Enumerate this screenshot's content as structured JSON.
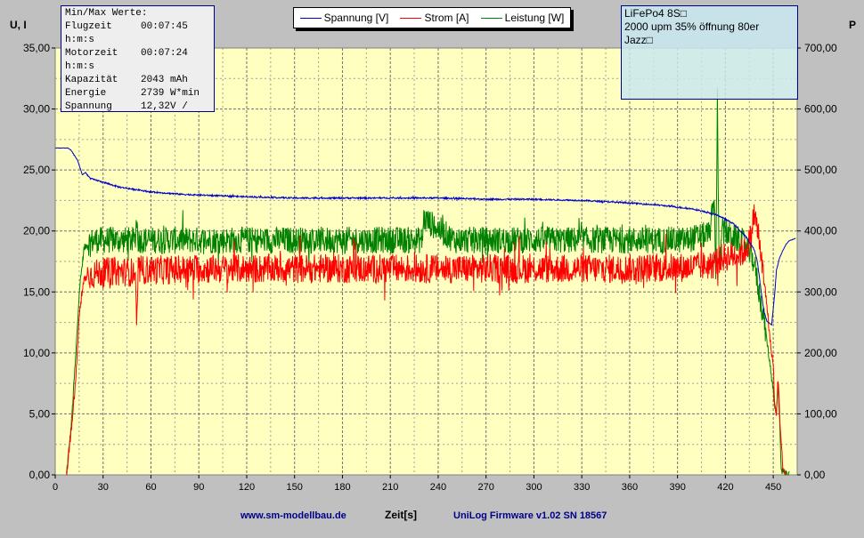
{
  "chart_data": {
    "type": "line",
    "xlabel": "Zeit[s]",
    "ylabel_left": "U, I",
    "ylabel_right": "P",
    "xlim": [
      0,
      465
    ],
    "ylim_left": [
      0,
      35
    ],
    "ylim_right": [
      0,
      700
    ],
    "x_ticks": [
      0,
      30,
      60,
      90,
      120,
      150,
      180,
      210,
      240,
      270,
      300,
      330,
      360,
      390,
      420,
      450
    ],
    "y_ticks_left": [
      "0,00",
      "5,00",
      "10,00",
      "15,00",
      "20,00",
      "25,00",
      "30,00",
      "35,00"
    ],
    "y_ticks_right": [
      "0,00",
      "100,00",
      "200,00",
      "300,00",
      "400,00",
      "500,00",
      "600,00",
      "700,00"
    ],
    "grid": true,
    "legend_position": "top-center",
    "series": [
      {
        "name": "Spannung [V]",
        "axis": "left",
        "color": "#0000c8",
        "x": [
          0,
          8,
          10,
          14,
          17,
          19,
          22,
          30,
          40,
          50,
          60,
          80,
          100,
          120,
          150,
          180,
          210,
          240,
          270,
          300,
          330,
          360,
          380,
          400,
          415,
          425,
          433,
          438,
          440,
          442,
          444,
          446,
          448,
          449,
          451,
          452,
          454,
          456,
          458,
          460,
          464
        ],
        "y": [
          26.8,
          26.8,
          26.6,
          25.8,
          24.6,
          24.8,
          24.3,
          24.0,
          23.6,
          23.4,
          23.2,
          23.0,
          22.9,
          22.8,
          22.7,
          22.7,
          22.7,
          22.7,
          22.6,
          22.6,
          22.5,
          22.3,
          22.1,
          21.8,
          21.3,
          20.6,
          19.5,
          18.5,
          17.5,
          15.5,
          13.5,
          12.6,
          12.4,
          12.3,
          15.0,
          16.8,
          17.8,
          18.4,
          18.9,
          19.2,
          19.4
        ]
      },
      {
        "name": "Strom [A]",
        "axis": "left",
        "color": "#ff0000",
        "x": [
          7,
          10,
          13,
          15,
          18,
          20,
          25,
          35,
          50,
          51,
          52,
          70,
          100,
          150,
          200,
          250,
          300,
          350,
          395,
          412,
          415,
          418,
          425,
          432,
          436,
          438,
          441,
          444,
          446,
          448,
          450,
          451,
          452,
          453,
          454,
          456,
          458
        ],
        "y": [
          0,
          3.5,
          8,
          13,
          16,
          16.3,
          16.5,
          16.7,
          16.6,
          12,
          16.8,
          16.8,
          16.9,
          16.9,
          16.9,
          16.9,
          16.9,
          16.9,
          17.0,
          17.2,
          17.6,
          17.8,
          18.0,
          18.3,
          19.5,
          21.5,
          19.5,
          16.0,
          14.0,
          11.0,
          9.0,
          5.5,
          5.0,
          8.0,
          5.0,
          0.5,
          0
        ]
      },
      {
        "name": "Leistung [W]",
        "axis": "right",
        "color": "#008000",
        "x": [
          7,
          10,
          13,
          15,
          18,
          20,
          25,
          35,
          50,
          51,
          52,
          70,
          100,
          150,
          200,
          230,
          231,
          250,
          300,
          350,
          395,
          410,
          413,
          414,
          415,
          416,
          418,
          425,
          432,
          438,
          441,
          444,
          446,
          448,
          450,
          451,
          452,
          453,
          454,
          455,
          456,
          460
        ],
        "y": [
          0,
          80,
          200,
          300,
          370,
          380,
          385,
          385,
          385,
          420,
          385,
          385,
          385,
          385,
          385,
          385,
          420,
          385,
          385,
          385,
          385,
          395,
          450,
          330,
          620,
          340,
          400,
          390,
          380,
          350,
          300,
          260,
          220,
          180,
          140,
          110,
          100,
          150,
          90,
          10,
          5,
          0
        ]
      }
    ]
  },
  "legend": {
    "items": [
      {
        "label": "Spannung [V]",
        "color": "#0000c8"
      },
      {
        "label": "Strom [A]",
        "color": "#ff0000"
      },
      {
        "label": "Leistung [W]",
        "color": "#008000"
      }
    ]
  },
  "stats_box": {
    "title": "Min/Max Werte:",
    "rows": [
      {
        "label": "Flugzeit",
        "value": "00:07:45"
      },
      {
        "label": "h:m:s",
        "value": ""
      },
      {
        "label": "Motorzeit",
        "value": "00:07:24"
      },
      {
        "label": "h:m:s",
        "value": ""
      },
      {
        "label": "Kapazität",
        "value": "2043 mAh"
      },
      {
        "label": "Energie",
        "value": "2739 W*min"
      },
      {
        "label": "Spannung",
        "value": "12,32V /"
      }
    ]
  },
  "note_box": {
    "lines": [
      "LiFePo4 8S□",
      "2000 upm 35% öffnung 80er",
      "Jazz□"
    ]
  },
  "footer": {
    "left": "www.sm-modellbau.de",
    "right": "UniLog Firmware v1.02 SN 18567"
  }
}
